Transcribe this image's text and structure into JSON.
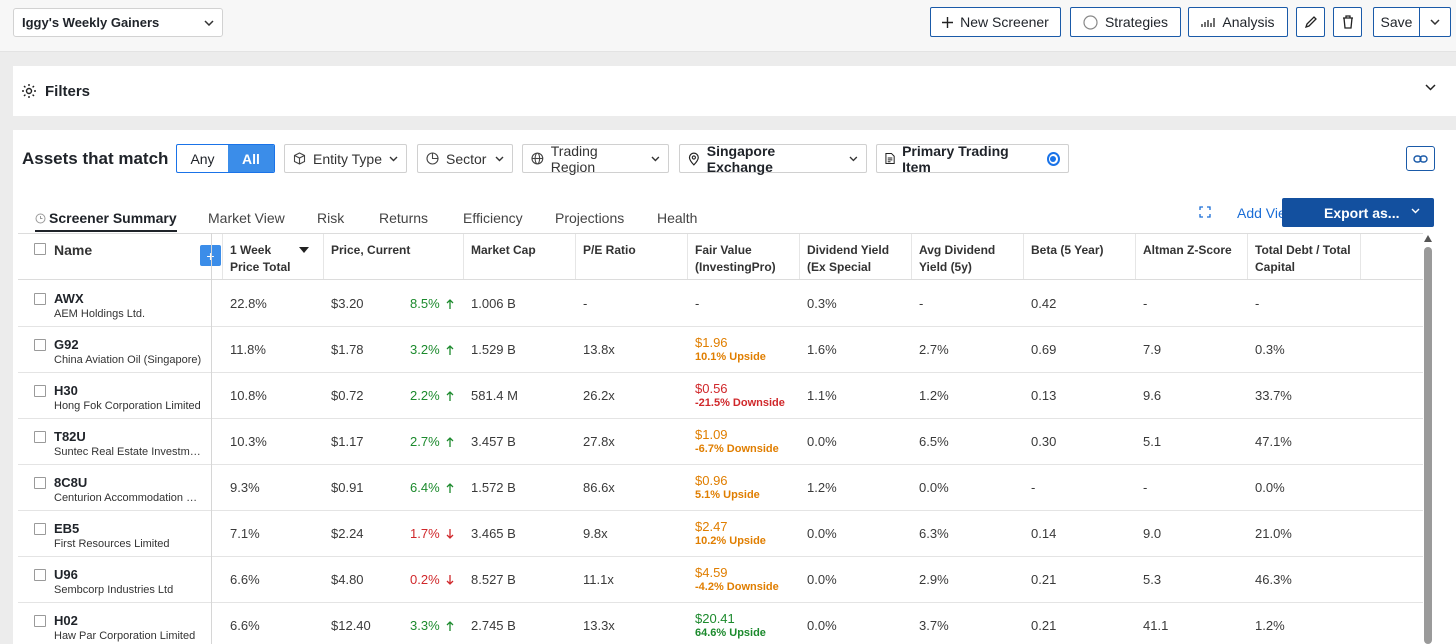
{
  "topbar": {
    "screener_name": "Iggy's Weekly Gainers",
    "new_screener": "New Screener",
    "strategies": "Strategies",
    "analysis": "Analysis",
    "save": "Save"
  },
  "filters": {
    "title": "Filters"
  },
  "assets": {
    "title": "Assets that match",
    "any": "Any",
    "all": "All",
    "entity_type": "Entity Type",
    "sector": "Sector",
    "trading_region": "Trading Region",
    "exchange": "Singapore Exchange",
    "primary_item": "Primary Trading Item"
  },
  "tabs": [
    "Screener Summary",
    "Market View",
    "Risk",
    "Returns",
    "Efficiency",
    "Projections",
    "Health"
  ],
  "toolbar": {
    "add_view": "Add View",
    "export": "Export as..."
  },
  "columns": {
    "name": "Name",
    "week_price_1": "1 Week",
    "week_price_2": "Price Total",
    "price": "Price, Current",
    "mcap": "Market Cap",
    "pe": "P/E Ratio",
    "fv_1": "Fair Value",
    "fv_2": "(InvestingPro)",
    "div_1": "Dividend Yield",
    "div_2": "(Ex Special",
    "avgdiv_1": "Avg Dividend",
    "avgdiv_2": "Yield (5y)",
    "beta": "Beta (5 Year)",
    "altman": "Altman Z-Score",
    "debt_1": "Total Debt / Total",
    "debt_2": "Capital"
  },
  "rows": [
    {
      "ticker": "AWX",
      "name": "AEM Holdings Ltd.",
      "week": "22.8%",
      "price": "$3.20",
      "chg": "8.5%",
      "dir": "up",
      "mcap": "1.006 B",
      "pe": "-",
      "fv": "-",
      "fv_note": "",
      "fv_color": "none",
      "div": "0.3%",
      "avgdiv": "-",
      "beta": "0.42",
      "altman": "-",
      "debt": "-"
    },
    {
      "ticker": "G92",
      "name": "China Aviation Oil (Singapore)",
      "week": "11.8%",
      "price": "$1.78",
      "chg": "3.2%",
      "dir": "up",
      "mcap": "1.529 B",
      "pe": "13.8x",
      "fv": "$1.96",
      "fv_note": "10.1% Upside",
      "fv_color": "orange",
      "div": "1.6%",
      "avgdiv": "2.7%",
      "beta": "0.69",
      "altman": "7.9",
      "debt": "0.3%"
    },
    {
      "ticker": "H30",
      "name": "Hong Fok Corporation Limited",
      "week": "10.8%",
      "price": "$0.72",
      "chg": "2.2%",
      "dir": "up",
      "mcap": "581.4 M",
      "pe": "26.2x",
      "fv": "$0.56",
      "fv_note": "-21.5% Downside",
      "fv_color": "red",
      "div": "1.1%",
      "avgdiv": "1.2%",
      "beta": "0.13",
      "altman": "9.6",
      "debt": "33.7%"
    },
    {
      "ticker": "T82U",
      "name": "Suntec Real Estate Investment Trust",
      "week": "10.3%",
      "price": "$1.17",
      "chg": "2.7%",
      "dir": "up",
      "mcap": "3.457 B",
      "pe": "27.8x",
      "fv": "$1.09",
      "fv_note": "-6.7% Downside",
      "fv_color": "orange",
      "div": "0.0%",
      "avgdiv": "6.5%",
      "beta": "0.30",
      "altman": "5.1",
      "debt": "47.1%"
    },
    {
      "ticker": "8C8U",
      "name": "Centurion Accommodation REIT",
      "week": "9.3%",
      "price": "$0.91",
      "chg": "6.4%",
      "dir": "up",
      "mcap": "1.572 B",
      "pe": "86.6x",
      "fv": "$0.96",
      "fv_note": "5.1% Upside",
      "fv_color": "orange",
      "div": "1.2%",
      "avgdiv": "0.0%",
      "beta": "-",
      "altman": "-",
      "debt": "0.0%"
    },
    {
      "ticker": "EB5",
      "name": "First Resources Limited",
      "week": "7.1%",
      "price": "$2.24",
      "chg": "1.7%",
      "dir": "down",
      "mcap": "3.465 B",
      "pe": "9.8x",
      "fv": "$2.47",
      "fv_note": "10.2% Upside",
      "fv_color": "orange",
      "div": "0.0%",
      "avgdiv": "6.3%",
      "beta": "0.14",
      "altman": "9.0",
      "debt": "21.0%"
    },
    {
      "ticker": "U96",
      "name": "Sembcorp Industries Ltd",
      "week": "6.6%",
      "price": "$4.80",
      "chg": "0.2%",
      "dir": "down",
      "mcap": "8.527 B",
      "pe": "11.1x",
      "fv": "$4.59",
      "fv_note": "-4.2% Downside",
      "fv_color": "orange",
      "div": "0.0%",
      "avgdiv": "2.9%",
      "beta": "0.21",
      "altman": "5.3",
      "debt": "46.3%"
    },
    {
      "ticker": "H02",
      "name": "Haw Par Corporation Limited",
      "week": "6.6%",
      "price": "$12.40",
      "chg": "3.3%",
      "dir": "up",
      "mcap": "2.745 B",
      "pe": "13.3x",
      "fv": "$20.41",
      "fv_note": "64.6% Upside",
      "fv_color": "green",
      "div": "0.0%",
      "avgdiv": "3.7%",
      "beta": "0.21",
      "altman": "41.1",
      "debt": "1.2%"
    }
  ]
}
